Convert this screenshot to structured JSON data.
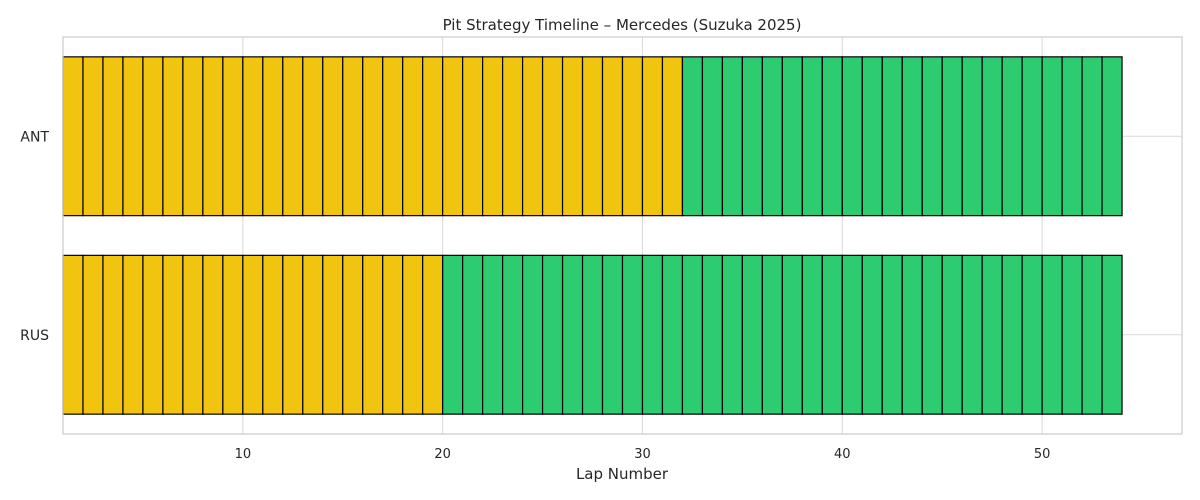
{
  "chart_data": {
    "type": "bar",
    "title": "Pit Strategy Timeline – Mercedes (Suzuka 2025)",
    "xlabel": "Lap Number",
    "ylabel": "",
    "xlim": [
      1,
      57
    ],
    "xticks": [
      10,
      20,
      30,
      40,
      50
    ],
    "grid": true,
    "categories": [
      "ANT",
      "RUS"
    ],
    "compound_colors": {
      "yellow": "#f1c40f",
      "green": "#2ecc71"
    },
    "series": [
      {
        "driver": "ANT",
        "laps": [
          1,
          54
        ],
        "stints": [
          {
            "color": "yellow",
            "start_lap": 1,
            "end_lap": 31
          },
          {
            "color": "green",
            "start_lap": 32,
            "end_lap": 53
          }
        ]
      },
      {
        "driver": "RUS",
        "laps": [
          1,
          54
        ],
        "stints": [
          {
            "color": "yellow",
            "start_lap": 1,
            "end_lap": 19
          },
          {
            "color": "green",
            "start_lap": 20,
            "end_lap": 53
          }
        ]
      }
    ]
  }
}
